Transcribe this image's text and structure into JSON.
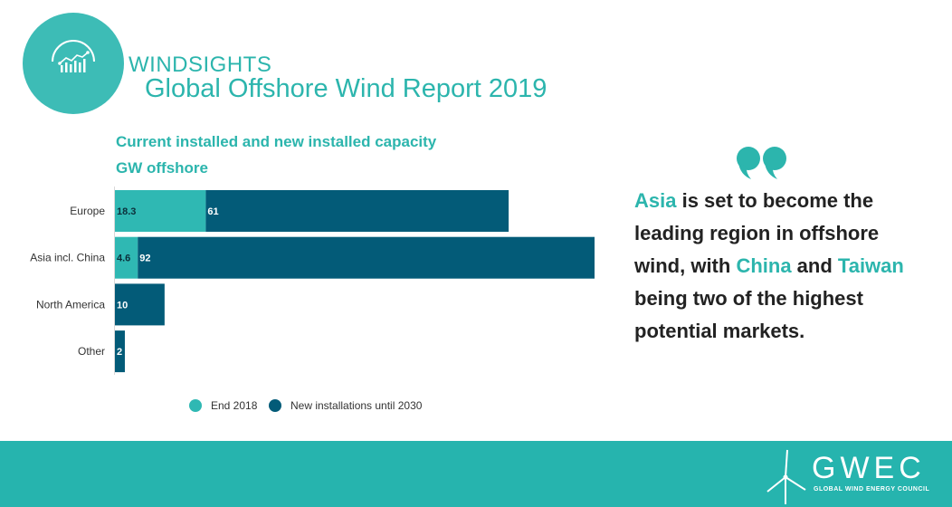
{
  "header": {
    "brand": "WINDSIGHTS",
    "report_title": "Global Offshore Wind Report",
    "report_year": "2019"
  },
  "colors": {
    "teal": "#2cb5ad",
    "end_2018": "#2fb8b3",
    "new_installations": "#035b78",
    "footer": "#26b4ae"
  },
  "chart_data": {
    "type": "bar",
    "orientation": "horizontal",
    "stacked": true,
    "title": "Current installed and new installed capacity",
    "subtitle": "GW offshore",
    "categories": [
      "Europe",
      "Asia incl. China",
      "North America",
      "Other"
    ],
    "series": [
      {
        "name": "End 2018",
        "values": [
          18.3,
          4.6,
          0,
          0
        ],
        "labels": [
          "18.3",
          "4.6",
          "",
          ""
        ]
      },
      {
        "name": "New installations until 2030",
        "values": [
          61,
          92,
          10,
          2
        ],
        "labels": [
          "61",
          "92",
          "10",
          "2"
        ]
      }
    ],
    "xlim": [
      0,
      96.6
    ],
    "grid": false,
    "legend": "bottom"
  },
  "quote": {
    "icon": "quote-icon",
    "part1": "Asia",
    "part2": " is set to become the leading region in offshore wind, with ",
    "part3": "China",
    "part4": " and ",
    "part5": "Taiwan",
    "part6": " being two of the highest potential markets."
  },
  "footer": {
    "logo_text": "GWEC",
    "logo_subtitle": "GLOBAL WIND ENERGY COUNCIL",
    "logo_icon": "wind-turbine-icon"
  }
}
